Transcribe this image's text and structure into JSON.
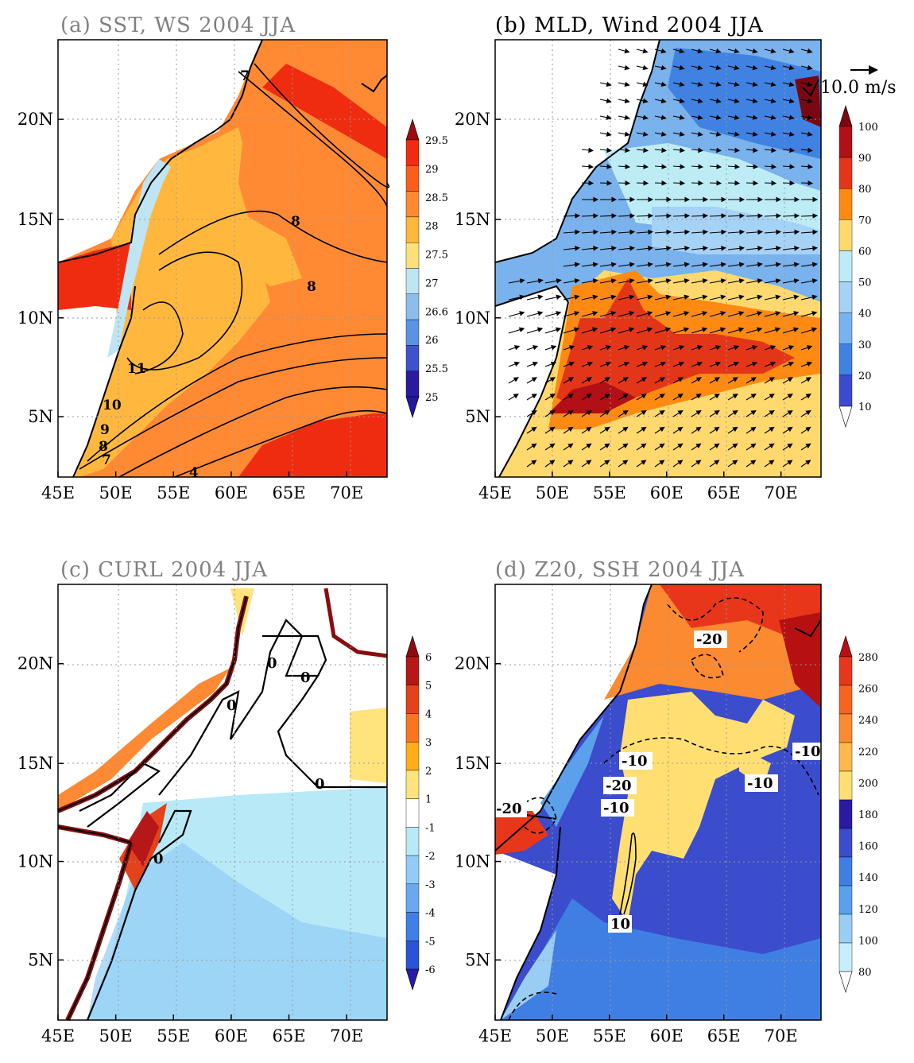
{
  "figure": {
    "panels": [
      {
        "id": "a",
        "title": "(a) SST, WS 2004 JJA",
        "colorbar": {
          "labels": [
            "29.5",
            "29",
            "28.5",
            "28",
            "27.5",
            "27",
            "26.6",
            "26",
            "25.5",
            "25"
          ],
          "colors": [
            "#f02c10",
            "#fb5e1c",
            "#ff8a33",
            "#ffb83d",
            "#fee07a",
            "#bfe4f4",
            "#8cbdec",
            "#5a93e4",
            "#3e52cc",
            "#2a1a9e"
          ],
          "top_arrow": "#9e0a14",
          "bottom_arrow": "#2218a0"
        },
        "contour_labels": [
          "7",
          "8",
          "8",
          "11",
          "10",
          "9",
          "8",
          "7",
          "4"
        ]
      },
      {
        "id": "b",
        "title": "(b) MLD, Wind 2004 JJA",
        "reference_vector": "10.0 m/s",
        "colorbar": {
          "labels": [
            "100",
            "90",
            "80",
            "70",
            "60",
            "50",
            "40",
            "30",
            "20",
            "10"
          ],
          "colors": [
            "#b21016",
            "#e33618",
            "#ff8a12",
            "#ffd96e",
            "#bdecf7",
            "#a6d2f6",
            "#79b2ec",
            "#3f82e2",
            "#3c4ad0"
          ],
          "top_arrow": "#7a0810",
          "bottom_arrow": "#ffffff"
        }
      },
      {
        "id": "c",
        "title": "(c) CURL 2004 JJA",
        "colorbar": {
          "labels": [
            "6",
            "5",
            "4",
            "3",
            "2",
            "1",
            "-1",
            "-2",
            "-3",
            "-4",
            "-5",
            "-6"
          ],
          "colors": [
            "#b51816",
            "#e3421a",
            "#fb741f",
            "#ffad19",
            "#ffe37d",
            "#ffffff",
            "#b8e9f6",
            "#92ccf6",
            "#6aa8ef",
            "#3f7fe6",
            "#2b53d8"
          ],
          "top_arrow": "#8a0c10",
          "bottom_arrow": "#2a1aa8"
        },
        "contour_labels": [
          "0",
          "0",
          "0",
          "0",
          "0"
        ]
      },
      {
        "id": "d",
        "title": "(d) Z20, SSH 2004 JJA",
        "colorbar": {
          "labels": [
            "280",
            "260",
            "240",
            "220",
            "200",
            "180",
            "160",
            "140",
            "120",
            "100",
            "80"
          ],
          "colors": [
            "#e8361a",
            "#f6641f",
            "#fb8a30",
            "#ffb94a",
            "#ffdf72",
            "#2a1aa0",
            "#3b4ccc",
            "#3f7fe4",
            "#5aa0ec",
            "#9acdf4",
            "#c8eefa"
          ],
          "top_arrow": "#b61012",
          "bottom_arrow": "#ffffff"
        },
        "contour_labels": [
          "-20",
          "-10",
          "-20",
          "-10",
          "-10",
          "-10",
          "-20",
          "10"
        ]
      }
    ],
    "x_ticks": [
      "45E",
      "50E",
      "55E",
      "60E",
      "65E",
      "70E"
    ],
    "y_ticks": [
      "20N",
      "15N",
      "10N",
      "5N"
    ]
  }
}
